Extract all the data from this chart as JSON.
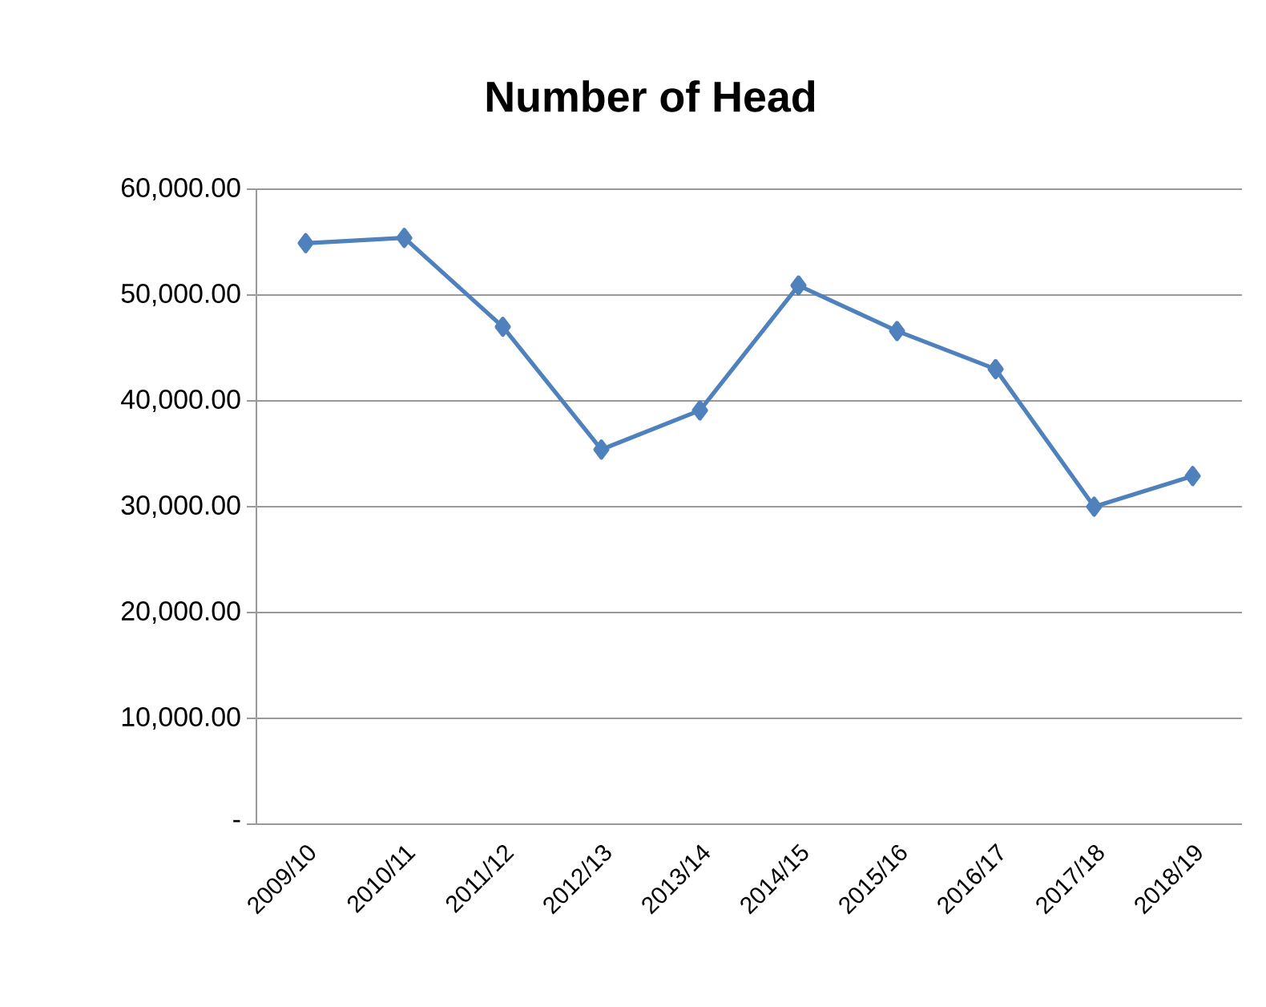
{
  "chart_data": {
    "type": "line",
    "title": "Number of Head",
    "categories": [
      "2009/10",
      "2010/11",
      "2011/12",
      "2012/13",
      "2013/14",
      "2014/15",
      "2015/16",
      "2016/17",
      "2017/18",
      "2018/19"
    ],
    "series": [
      {
        "color": "#4f81bd",
        "values": [
          54900,
          55400,
          47000,
          35400,
          39100,
          50900,
          46600,
          43000,
          30000,
          32900
        ]
      }
    ],
    "ylim": [
      0,
      60000
    ],
    "yticks": [
      {
        "value": 0,
        "label": "-"
      },
      {
        "value": 10000,
        "label": "10,000.00"
      },
      {
        "value": 20000,
        "label": "20,000.00"
      },
      {
        "value": 30000,
        "label": "30,000.00"
      },
      {
        "value": 40000,
        "label": "40,000.00"
      },
      {
        "value": 50000,
        "label": "50,000.00"
      },
      {
        "value": 60000,
        "label": "60,000.00"
      }
    ],
    "grid": "y",
    "legend": false,
    "marker": "diamond",
    "line_style": "solid"
  }
}
